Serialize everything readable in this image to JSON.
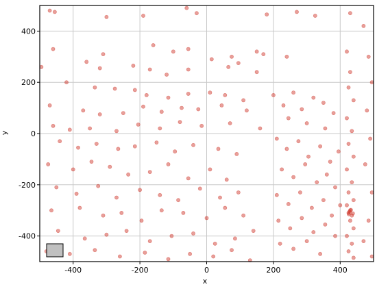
{
  "chart_data": {
    "type": "scatter",
    "title": "",
    "xlabel": "x",
    "ylabel": "y",
    "xlim": [
      -500,
      500
    ],
    "ylim": [
      -500,
      500
    ],
    "xticks": [
      "-400",
      "-200",
      "0",
      "200",
      "400"
    ],
    "yticks": [
      "400",
      "200",
      "0",
      "-200",
      "-400"
    ],
    "grid": true,
    "colors": {
      "point": "#cd2b1e",
      "bright": "#ff0000",
      "grid": "#c8c8c8",
      "legend_box": "#c0c0c0"
    },
    "series": [
      {
        "points": [
          [
            -470,
            480
          ],
          [
            -455,
            475
          ],
          [
            -300,
            455
          ],
          [
            -190,
            460
          ],
          [
            -60,
            490
          ],
          [
            -30,
            470
          ],
          [
            180,
            465
          ],
          [
            270,
            475
          ],
          [
            325,
            460
          ],
          [
            430,
            470
          ],
          [
            -460,
            330
          ],
          [
            -310,
            310
          ],
          [
            -160,
            345
          ],
          [
            -100,
            320
          ],
          [
            -55,
            330
          ],
          [
            15,
            290
          ],
          [
            75,
            300
          ],
          [
            150,
            320
          ],
          [
            170,
            310
          ],
          [
            240,
            300
          ],
          [
            -495,
            260
          ],
          [
            -360,
            280
          ],
          [
            -320,
            255
          ],
          [
            -220,
            265
          ],
          [
            -170,
            250
          ],
          [
            -120,
            230
          ],
          [
            -55,
            250
          ],
          [
            65,
            260
          ],
          [
            95,
            275
          ],
          [
            150,
            240
          ],
          [
            -420,
            200
          ],
          [
            -335,
            180
          ],
          [
            -275,
            175
          ],
          [
            -215,
            170
          ],
          [
            -180,
            150
          ],
          [
            -115,
            140
          ],
          [
            -55,
            155
          ],
          [
            10,
            160
          ],
          [
            55,
            150
          ],
          [
            110,
            130
          ],
          [
            -470,
            110
          ],
          [
            -370,
            90
          ],
          [
            -320,
            75
          ],
          [
            -250,
            80
          ],
          [
            -190,
            105
          ],
          [
            -135,
            85
          ],
          [
            -75,
            100
          ],
          [
            -25,
            95
          ],
          [
            45,
            110
          ],
          [
            120,
            90
          ],
          [
            -460,
            30
          ],
          [
            -410,
            15
          ],
          [
            -350,
            20
          ],
          [
            -270,
            10
          ],
          [
            -205,
            35
          ],
          [
            -140,
            20
          ],
          [
            -80,
            45
          ],
          [
            -15,
            30
          ],
          [
            70,
            40
          ],
          [
            160,
            20
          ],
          [
            -440,
            -30
          ],
          [
            -385,
            -55
          ],
          [
            -330,
            -40
          ],
          [
            -265,
            -60
          ],
          [
            -215,
            -50
          ],
          [
            -150,
            -35
          ],
          [
            -95,
            -70
          ],
          [
            -40,
            -45
          ],
          [
            35,
            -60
          ],
          [
            90,
            -80
          ],
          [
            -475,
            -120
          ],
          [
            -400,
            -140
          ],
          [
            -345,
            -110
          ],
          [
            -290,
            -130
          ],
          [
            -235,
            -160
          ],
          [
            -170,
            -150
          ],
          [
            -115,
            -120
          ],
          [
            -55,
            -175
          ],
          [
            10,
            -140
          ],
          [
            60,
            -180
          ],
          [
            -450,
            -210
          ],
          [
            -390,
            -235
          ],
          [
            -325,
            -205
          ],
          [
            -270,
            -250
          ],
          [
            -200,
            -220
          ],
          [
            -140,
            -240
          ],
          [
            -85,
            -260
          ],
          [
            -20,
            -215
          ],
          [
            40,
            -250
          ],
          [
            95,
            -230
          ],
          [
            -465,
            -300
          ],
          [
            -380,
            -290
          ],
          [
            -310,
            -320
          ],
          [
            -255,
            -310
          ],
          [
            -195,
            -340
          ],
          [
            -135,
            -300
          ],
          [
            -70,
            -310
          ],
          [
            0,
            -330
          ],
          [
            55,
            -290
          ],
          [
            110,
            -320
          ],
          [
            -445,
            -380
          ],
          [
            -365,
            -410
          ],
          [
            -300,
            -395
          ],
          [
            -240,
            -380
          ],
          [
            -170,
            -420
          ],
          [
            -105,
            -400
          ],
          [
            -40,
            -390
          ],
          [
            25,
            -430
          ],
          [
            85,
            -410
          ],
          [
            140,
            -380
          ],
          [
            -480,
            -460
          ],
          [
            -410,
            -470
          ],
          [
            -335,
            -455
          ],
          [
            -260,
            -480
          ],
          [
            -185,
            -465
          ],
          [
            -115,
            -490
          ],
          [
            -50,
            -470
          ],
          [
            20,
            -480
          ],
          [
            75,
            -455
          ],
          [
            130,
            -495
          ],
          [
            200,
            150
          ],
          [
            230,
            110
          ],
          [
            260,
            160
          ],
          [
            285,
            95
          ],
          [
            320,
            140
          ],
          [
            350,
            120
          ],
          [
            380,
            80
          ],
          [
            245,
            60
          ],
          [
            300,
            40
          ],
          [
            355,
            20
          ],
          [
            210,
            -20
          ],
          [
            240,
            -60
          ],
          [
            275,
            -30
          ],
          [
            305,
            -90
          ],
          [
            340,
            -50
          ],
          [
            370,
            -110
          ],
          [
            395,
            -70
          ],
          [
            225,
            -140
          ],
          [
            260,
            -170
          ],
          [
            295,
            -120
          ],
          [
            330,
            -190
          ],
          [
            360,
            -160
          ],
          [
            385,
            -210
          ],
          [
            210,
            -240
          ],
          [
            245,
            -275
          ],
          [
            280,
            -230
          ],
          [
            315,
            -290
          ],
          [
            350,
            -260
          ],
          [
            375,
            -320
          ],
          [
            400,
            -280
          ],
          [
            215,
            -340
          ],
          [
            250,
            -370
          ],
          [
            285,
            -330
          ],
          [
            320,
            -385
          ],
          [
            355,
            -355
          ],
          [
            385,
            -400
          ],
          [
            220,
            -430
          ],
          [
            260,
            -450
          ],
          [
            300,
            -420
          ],
          [
            340,
            -470
          ],
          [
            420,
            320
          ],
          [
            430,
            240
          ],
          [
            425,
            180
          ],
          [
            440,
            130
          ],
          [
            420,
            60
          ],
          [
            435,
            10
          ],
          [
            425,
            -40
          ],
          [
            440,
            -90
          ],
          [
            420,
            -140
          ],
          [
            435,
            -190
          ],
          [
            425,
            -230
          ],
          [
            440,
            -260
          ],
          [
            420,
            -280
          ],
          [
            430,
            -300
          ],
          [
            425,
            -310
          ],
          [
            435,
            -320
          ],
          [
            428,
            -305
          ],
          [
            432,
            -298
          ],
          [
            426,
            -315
          ],
          [
            438,
            -312
          ],
          [
            430,
            -340
          ],
          [
            440,
            -370
          ],
          [
            420,
            -400
          ],
          [
            435,
            -430
          ],
          [
            425,
            -460
          ],
          [
            440,
            -485
          ],
          [
            470,
            420
          ],
          [
            485,
            300
          ],
          [
            495,
            200
          ],
          [
            480,
            90
          ],
          [
            490,
            -20
          ],
          [
            475,
            -120
          ],
          [
            495,
            -230
          ],
          [
            485,
            -340
          ],
          [
            470,
            -420
          ],
          [
            495,
            -480
          ]
        ]
      }
    ],
    "legend_label": ""
  }
}
